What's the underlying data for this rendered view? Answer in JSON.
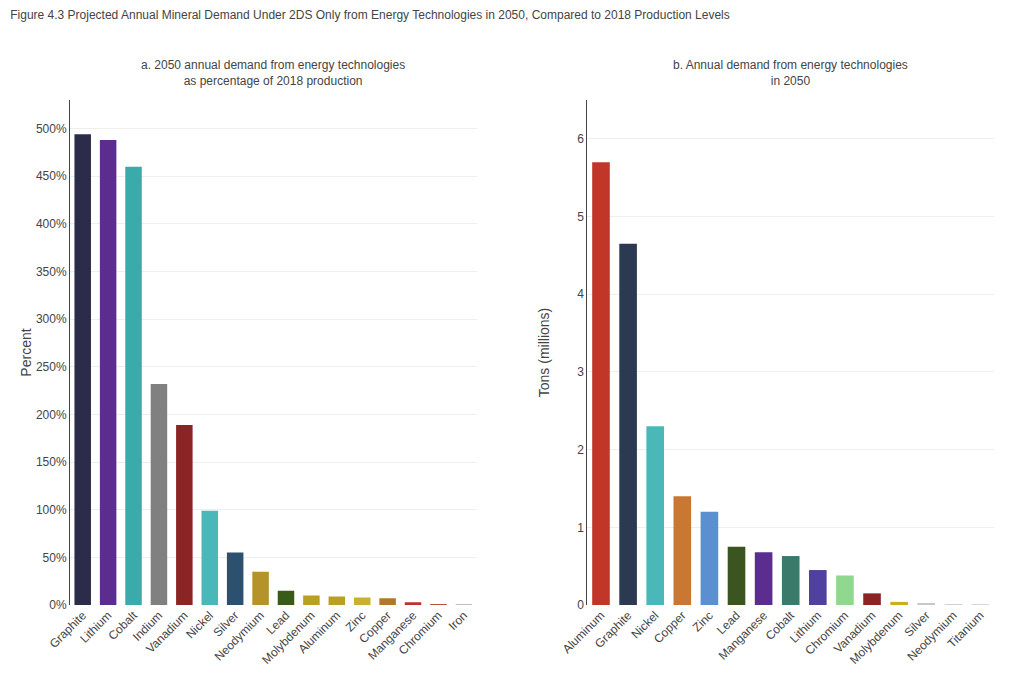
{
  "title": "Figure 4.3 Projected Annual Mineral Demand Under 2DS Only from Energy Technologies in 2050, Compared to 2018 Production Levels",
  "chart_data": [
    {
      "type": "bar",
      "title": "a. 2050 annual demand from energy technologies\nas percentage of 2018 production",
      "ylabel": "Percent",
      "categories": [
        "Graphite",
        "Lithium",
        "Cobalt",
        "Indium",
        "Vanadium",
        "Nickel",
        "Silver",
        "Neodymium",
        "Lead",
        "Molybdenum",
        "Aluminum",
        "Zinc",
        "Copper",
        "Manganese",
        "Chromium",
        "Iron"
      ],
      "values": [
        494,
        488,
        460,
        232,
        189,
        99,
        55,
        35,
        15,
        10,
        9,
        8,
        7,
        3,
        1,
        0.5
      ],
      "colors": [
        "#2b2b4a",
        "#5b2d8e",
        "#3aabaa",
        "#808080",
        "#8b2525",
        "#4ab8b8",
        "#2b5070",
        "#b5922a",
        "#3a5a1a",
        "#b8a020",
        "#b8a020",
        "#c8b030",
        "#b07828",
        "#c03030",
        "#b85040",
        "#c0c0c0"
      ],
      "ylim": [
        0,
        530
      ],
      "yticks": [
        {
          "value": 0,
          "label": "0%"
        },
        {
          "value": 50,
          "label": "50%"
        },
        {
          "value": 100,
          "label": "100%"
        },
        {
          "value": 150,
          "label": "150%"
        },
        {
          "value": 200,
          "label": "200%"
        },
        {
          "value": 250,
          "label": "250%"
        },
        {
          "value": 300,
          "label": "300%"
        },
        {
          "value": 350,
          "label": "350%"
        },
        {
          "value": 400,
          "label": "400%"
        },
        {
          "value": 450,
          "label": "450%"
        },
        {
          "value": 500,
          "label": "500%"
        }
      ],
      "grid": true
    },
    {
      "type": "bar",
      "title": "b. Annual demand from energy technologies\nin 2050",
      "ylabel": "Tons (millions)",
      "categories": [
        "Aluminum",
        "Graphite",
        "Nickel",
        "Copper",
        "Zinc",
        "Lead",
        "Manganese",
        "Cobalt",
        "Lithium",
        "Chromium",
        "Vanadium",
        "Molybdenum",
        "Silver",
        "Neodymium",
        "Titanium"
      ],
      "values": [
        5.7,
        4.65,
        2.3,
        1.4,
        1.2,
        0.75,
        0.68,
        0.63,
        0.45,
        0.38,
        0.15,
        0.04,
        0.015,
        0.008,
        0.004
      ],
      "colors": [
        "#c0372a",
        "#2b3a50",
        "#4ab8b8",
        "#c87832",
        "#5b8fd0",
        "#3a5520",
        "#5b2d8e",
        "#3a7a6a",
        "#5040a0",
        "#90d890",
        "#8b2525",
        "#c8b020",
        "#c8c8c8",
        "#d0d0d0",
        "#d8d8d8"
      ],
      "ylim": [
        0,
        6.5
      ],
      "yticks": [
        0,
        1,
        2,
        3,
        4,
        5,
        6
      ],
      "grid": true
    }
  ]
}
